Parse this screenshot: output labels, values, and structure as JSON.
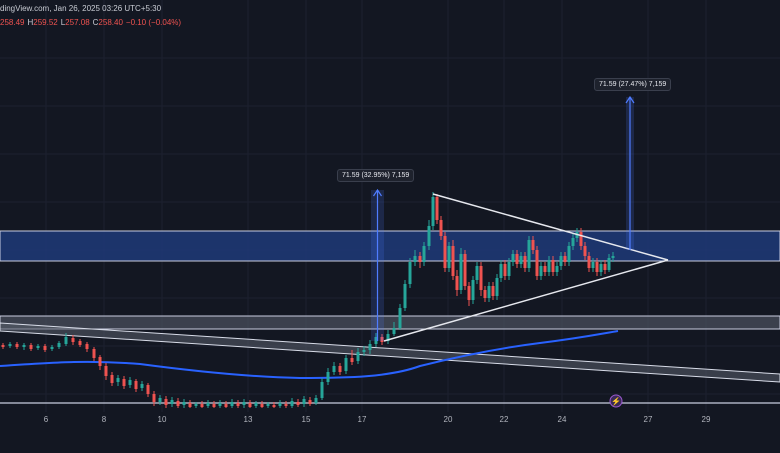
{
  "header": {
    "source_line": "dingView.com, Jan 26, 2025 03:26 UTC+5:30",
    "open_value": "258.49",
    "high_key": "H",
    "high_value": "259.52",
    "low_key": "L",
    "low_value": "257.08",
    "close_key": "C",
    "close_value": "258.40",
    "change": "−0.10 (−0.04%)"
  },
  "colors": {
    "background": "#131722",
    "up_candle": "#26a69a",
    "down_candle": "#ef5350",
    "moving_average": "#2962ff",
    "supply_zone": "#1f3a78",
    "trendline": "#e6e8ee",
    "measure_arrow": "#4f7cff"
  },
  "chart_data": {
    "type": "candlestick",
    "x_tick_labels": [
      "6",
      "8",
      "10",
      "13",
      "15",
      "17",
      "20",
      "22",
      "24",
      "27",
      "29"
    ],
    "annotations": [
      {
        "text": "71.59 (27.47%) 7,159",
        "kind": "measure-upper"
      },
      {
        "text": "71.59 (32.95%) 7,159",
        "kind": "measure-lower"
      }
    ],
    "zones": [
      "resistance-zone",
      "support-zone",
      "bottom-zone"
    ],
    "patterns": [
      "symmetrical-triangle",
      "descending-channel"
    ],
    "moving_average": {
      "name": "",
      "visible": true
    },
    "grid": true,
    "price_scale_visible": false,
    "event_icon": "dividend-icon"
  }
}
